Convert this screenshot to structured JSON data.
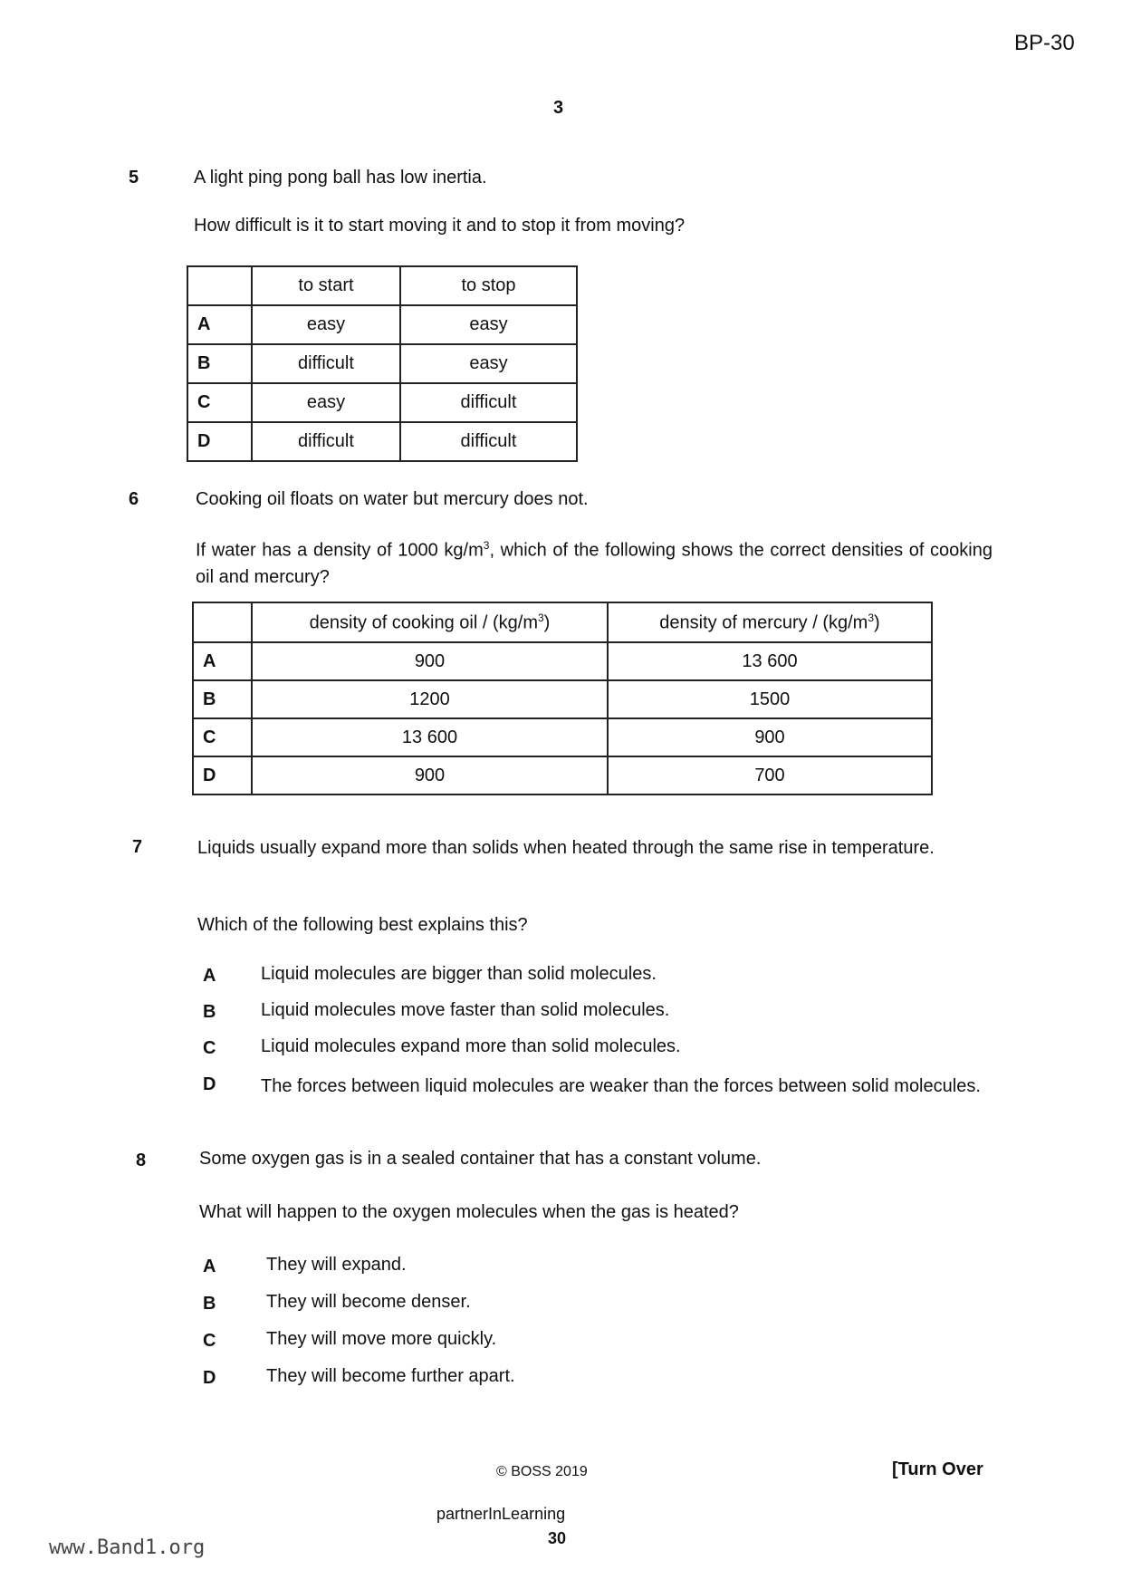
{
  "header": {
    "code": "BP-30",
    "page_number": "3"
  },
  "questions": [
    {
      "number": "5",
      "stem": "A light ping pong ball has low inertia.",
      "question": "How difficult is it to start moving it and to stop it from moving?",
      "table": {
        "headers": [
          "",
          "to start",
          "to stop"
        ],
        "rows": [
          [
            "A",
            "easy",
            "easy"
          ],
          [
            "B",
            "difficult",
            "easy"
          ],
          [
            "C",
            "easy",
            "difficult"
          ],
          [
            "D",
            "difficult",
            "difficult"
          ]
        ]
      }
    },
    {
      "number": "6",
      "stem": "Cooking oil floats on water but mercury does not.",
      "question_pre": "If water has a density of 1000 kg/m",
      "question_sup": "3",
      "question_post": ", which of the following shows the correct densities of cooking oil and mercury?",
      "table": {
        "headers": [
          "",
          "density of cooking oil / (kg/m",
          "density of mercury / (kg/m"
        ],
        "header_sup": "3",
        "header_close": ")",
        "rows": [
          [
            "A",
            "900",
            "13 600"
          ],
          [
            "B",
            "1200",
            "1500"
          ],
          [
            "C",
            "13 600",
            "900"
          ],
          [
            "D",
            "900",
            "700"
          ]
        ]
      }
    },
    {
      "number": "7",
      "stem": "Liquids usually expand more than solids when heated through the same rise in temperature.",
      "question": "Which of the following best explains this?",
      "options": [
        {
          "letter": "A",
          "text": "Liquid molecules are bigger than solid molecules."
        },
        {
          "letter": "B",
          "text": "Liquid molecules move faster than solid molecules."
        },
        {
          "letter": "C",
          "text": "Liquid molecules expand more than solid molecules."
        },
        {
          "letter": "D",
          "text": "The forces between liquid molecules are weaker than the forces between solid molecules."
        }
      ]
    },
    {
      "number": "8",
      "stem": "Some oxygen gas is in a sealed container that has a constant volume.",
      "question": "What will happen to the oxygen molecules when the gas is heated?",
      "options": [
        {
          "letter": "A",
          "text": "They will expand."
        },
        {
          "letter": "B",
          "text": "They will become denser."
        },
        {
          "letter": "C",
          "text": "They will move more quickly."
        },
        {
          "letter": "D",
          "text": "They will become further apart."
        }
      ]
    }
  ],
  "footer": {
    "copyright": "© BOSS 2019",
    "turn_over": "[Turn Over",
    "partner": "partnerInLearning",
    "page": "30",
    "watermark": "www.Band1.org"
  }
}
